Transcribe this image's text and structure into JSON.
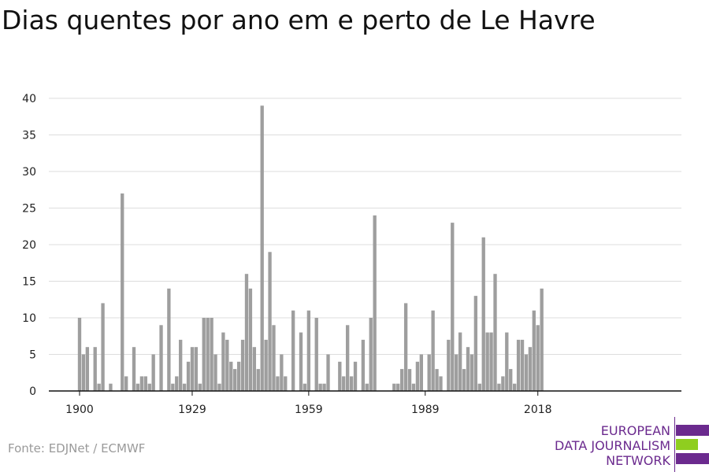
{
  "title": "Dias quentes por ano em e perto de Le Havre",
  "source": "Fonte: EDJNet / ECMWF",
  "logo": {
    "lines": [
      "EUROPEAN",
      "DATA JOURNALISM",
      "NETWORK"
    ]
  },
  "colors": {
    "bar": "#9e9e9e",
    "grid": "#dddddd",
    "axis": "#111111",
    "logo_purple": "#6b2a8e",
    "logo_green": "#8fce1f"
  },
  "chart_data": {
    "type": "bar",
    "title": "Dias quentes por ano em e perto de Le Havre",
    "xlabel": "",
    "ylabel": "",
    "ylim": [
      0,
      40
    ],
    "yticks": [
      0,
      5,
      10,
      15,
      20,
      25,
      30,
      35,
      40
    ],
    "xticks": [
      1900,
      1929,
      1959,
      1989,
      2018
    ],
    "grid": true,
    "x": [
      1900,
      1901,
      1902,
      1903,
      1904,
      1905,
      1906,
      1907,
      1908,
      1909,
      1910,
      1911,
      1912,
      1913,
      1914,
      1915,
      1916,
      1917,
      1918,
      1919,
      1920,
      1921,
      1922,
      1923,
      1924,
      1925,
      1926,
      1927,
      1928,
      1929,
      1930,
      1931,
      1932,
      1933,
      1934,
      1935,
      1936,
      1937,
      1938,
      1939,
      1940,
      1941,
      1942,
      1943,
      1944,
      1945,
      1946,
      1947,
      1948,
      1949,
      1950,
      1951,
      1952,
      1953,
      1954,
      1955,
      1956,
      1957,
      1958,
      1959,
      1960,
      1961,
      1962,
      1963,
      1964,
      1965,
      1966,
      1967,
      1968,
      1969,
      1970,
      1971,
      1972,
      1973,
      1974,
      1975,
      1976,
      1977,
      1978,
      1979,
      1980,
      1981,
      1982,
      1983,
      1984,
      1985,
      1986,
      1987,
      1988,
      1989,
      1990,
      1991,
      1992,
      1993,
      1994,
      1995,
      1996,
      1997,
      1998,
      1999,
      2000,
      2001,
      2002,
      2003,
      2004,
      2005,
      2006,
      2007,
      2008,
      2009,
      2010,
      2011,
      2012,
      2013,
      2014,
      2015,
      2016,
      2017,
      2018,
      2019
    ],
    "values": [
      10,
      5,
      6,
      0,
      6,
      1,
      12,
      0,
      1,
      0,
      0,
      27,
      2,
      0,
      6,
      1,
      2,
      2,
      1,
      5,
      0,
      9,
      0,
      14,
      1,
      2,
      7,
      1,
      4,
      6,
      6,
      1,
      10,
      10,
      10,
      5,
      1,
      8,
      7,
      4,
      3,
      4,
      7,
      16,
      14,
      6,
      3,
      39,
      7,
      19,
      9,
      2,
      5,
      2,
      0,
      11,
      0,
      8,
      1,
      11,
      0,
      10,
      1,
      1,
      5,
      0,
      0,
      4,
      2,
      9,
      2,
      4,
      0,
      7,
      1,
      10,
      24,
      0,
      0,
      0,
      0,
      1,
      1,
      3,
      12,
      3,
      1,
      4,
      5,
      0,
      5,
      11,
      3,
      2,
      0,
      7,
      23,
      5,
      8,
      3,
      6,
      5,
      13,
      1,
      21,
      8,
      8,
      16,
      1,
      2,
      8,
      3,
      1,
      7,
      7,
      5,
      6,
      11,
      9,
      14
    ]
  }
}
